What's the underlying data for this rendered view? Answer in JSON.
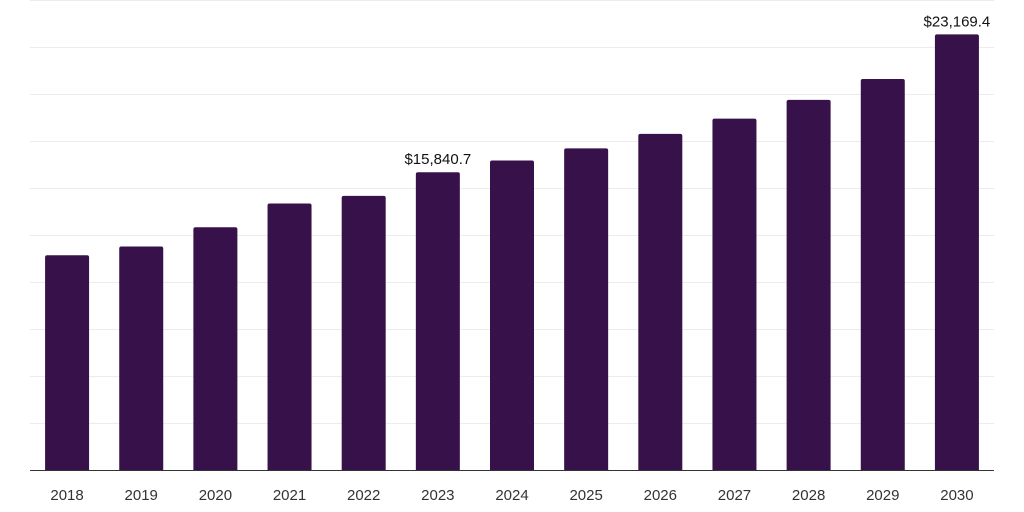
{
  "chart_data": {
    "type": "bar",
    "categories": [
      "2018",
      "2019",
      "2020",
      "2021",
      "2022",
      "2023",
      "2024",
      "2025",
      "2026",
      "2027",
      "2028",
      "2029",
      "2030"
    ],
    "values": [
      11425,
      11885,
      12910,
      14175,
      14580,
      15840.7,
      16465,
      17105,
      17880,
      18690,
      19690,
      20795,
      23169.4
    ],
    "data_labels": [
      {
        "category": "2023",
        "text": "$15,840.7"
      },
      {
        "category": "2030",
        "text": "$23,169.4"
      }
    ],
    "ylim": [
      0,
      25000
    ],
    "grid": true,
    "bar_color": "#37124a"
  }
}
